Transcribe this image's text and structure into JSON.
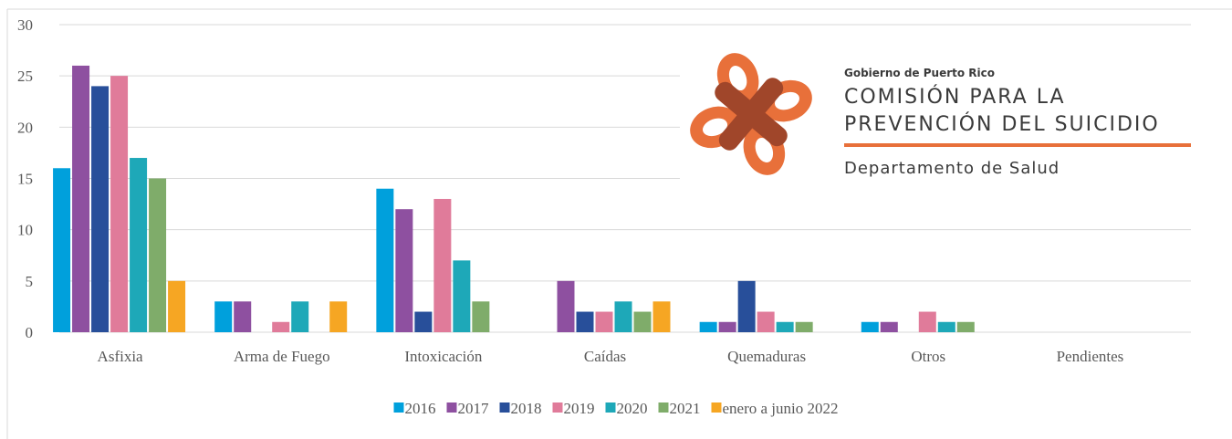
{
  "chart_data": {
    "type": "bar",
    "categories": [
      "Asfixia",
      "Arma de Fuego",
      "Intoxicación",
      "Caídas",
      "Quemaduras",
      "Otros",
      "Pendientes"
    ],
    "series": [
      {
        "name": "2016",
        "color": "#00a0dc",
        "values": [
          16,
          3,
          14,
          0,
          1,
          1,
          0
        ]
      },
      {
        "name": "2017",
        "color": "#8e50a0",
        "values": [
          26,
          3,
          12,
          5,
          1,
          1,
          0
        ]
      },
      {
        "name": "2018",
        "color": "#284f9a",
        "values": [
          24,
          0,
          2,
          2,
          5,
          0,
          0
        ]
      },
      {
        "name": "2019",
        "color": "#e07b9a",
        "values": [
          25,
          1,
          13,
          2,
          2,
          2,
          0
        ]
      },
      {
        "name": "2020",
        "color": "#1ea8b8",
        "values": [
          17,
          3,
          7,
          3,
          1,
          1,
          0
        ]
      },
      {
        "name": "2021",
        "color": "#7fac6a",
        "values": [
          15,
          0,
          3,
          2,
          1,
          1,
          0
        ]
      },
      {
        "name": "enero a junio 2022",
        "color": "#f6a623",
        "values": [
          5,
          3,
          0,
          3,
          0,
          0,
          0
        ]
      }
    ],
    "ylim": [
      0,
      30
    ],
    "yticks": [
      0,
      5,
      10,
      15,
      20,
      25,
      30
    ],
    "grid": true,
    "legend": "bottom"
  },
  "logo": {
    "agency": "Gobierno de Puerto Rico",
    "title_line1": "COMISIÓN PARA LA",
    "title_line2": "PREVENCIÓN DEL SUICIDIO",
    "department": "Departamento de Salud"
  }
}
